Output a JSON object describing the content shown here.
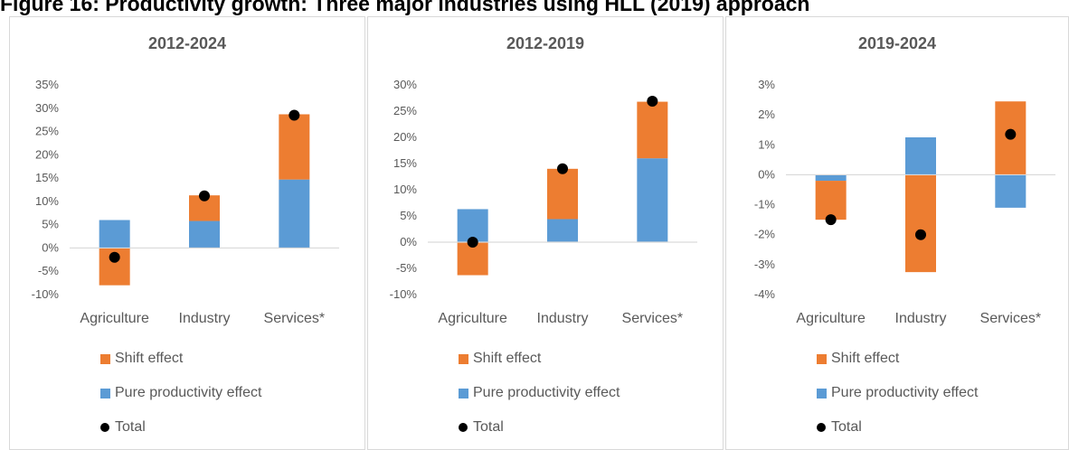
{
  "figure_title": "Figure 16: Productivity growth: Three major industries using HLL (2019) approach",
  "colors": {
    "shift": "#ED7D31",
    "pure": "#5B9BD5",
    "total": "#000000",
    "axis": "#d9d9d9",
    "text": "#595959"
  },
  "legend": {
    "shift": "Shift effect",
    "pure": "Pure productivity effect",
    "total": "Total"
  },
  "chart_data": [
    {
      "type": "bar",
      "title": "2012-2024",
      "categories": [
        "Agriculture",
        "Industry",
        "Services*"
      ],
      "ylim": [
        -10,
        35
      ],
      "yticks": [
        -10,
        -5,
        0,
        5,
        10,
        15,
        20,
        25,
        30,
        35
      ],
      "yticklabels": [
        "-10%",
        "-5%",
        "0%",
        "5%",
        "10%",
        "15%",
        "20%",
        "25%",
        "30%",
        "35%"
      ],
      "series": [
        {
          "name": "Shift effect",
          "values": [
            -8,
            5.5,
            14
          ]
        },
        {
          "name": "Pure productivity effect",
          "values": [
            6,
            5.8,
            14.7
          ]
        },
        {
          "name": "Total",
          "values": [
            -2,
            11.2,
            28.5
          ]
        }
      ]
    },
    {
      "type": "bar",
      "title": "2012-2019",
      "categories": [
        "Agriculture",
        "Industry",
        "Services*"
      ],
      "ylim": [
        -10,
        30
      ],
      "yticks": [
        -10,
        -5,
        0,
        5,
        10,
        15,
        20,
        25,
        30
      ],
      "yticklabels": [
        "-10%",
        "-5%",
        "0%",
        "5%",
        "10%",
        "15%",
        "20%",
        "25%",
        "30%"
      ],
      "series": [
        {
          "name": "Shift effect",
          "values": [
            -6.3,
            9.6,
            10.8
          ]
        },
        {
          "name": "Pure productivity effect",
          "values": [
            6.3,
            4.4,
            16
          ]
        },
        {
          "name": "Total",
          "values": [
            0,
            14,
            26.9
          ]
        }
      ]
    },
    {
      "type": "bar",
      "title": "2019-2024",
      "categories": [
        "Agriculture",
        "Industry",
        "Services*"
      ],
      "ylim": [
        -4,
        3
      ],
      "yticks": [
        -4,
        -3,
        -2,
        -1,
        0,
        1,
        2,
        3
      ],
      "yticklabels": [
        "-4%",
        "-3%",
        "-2%",
        "-1%",
        "0%",
        "1%",
        "2%",
        "3%"
      ],
      "series": [
        {
          "name": "Shift effect",
          "values": [
            -1.3,
            -3.25,
            2.45
          ]
        },
        {
          "name": "Pure productivity effect",
          "values": [
            -0.2,
            1.25,
            -1.1
          ]
        },
        {
          "name": "Total",
          "values": [
            -1.5,
            -2,
            1.35
          ]
        }
      ]
    }
  ]
}
